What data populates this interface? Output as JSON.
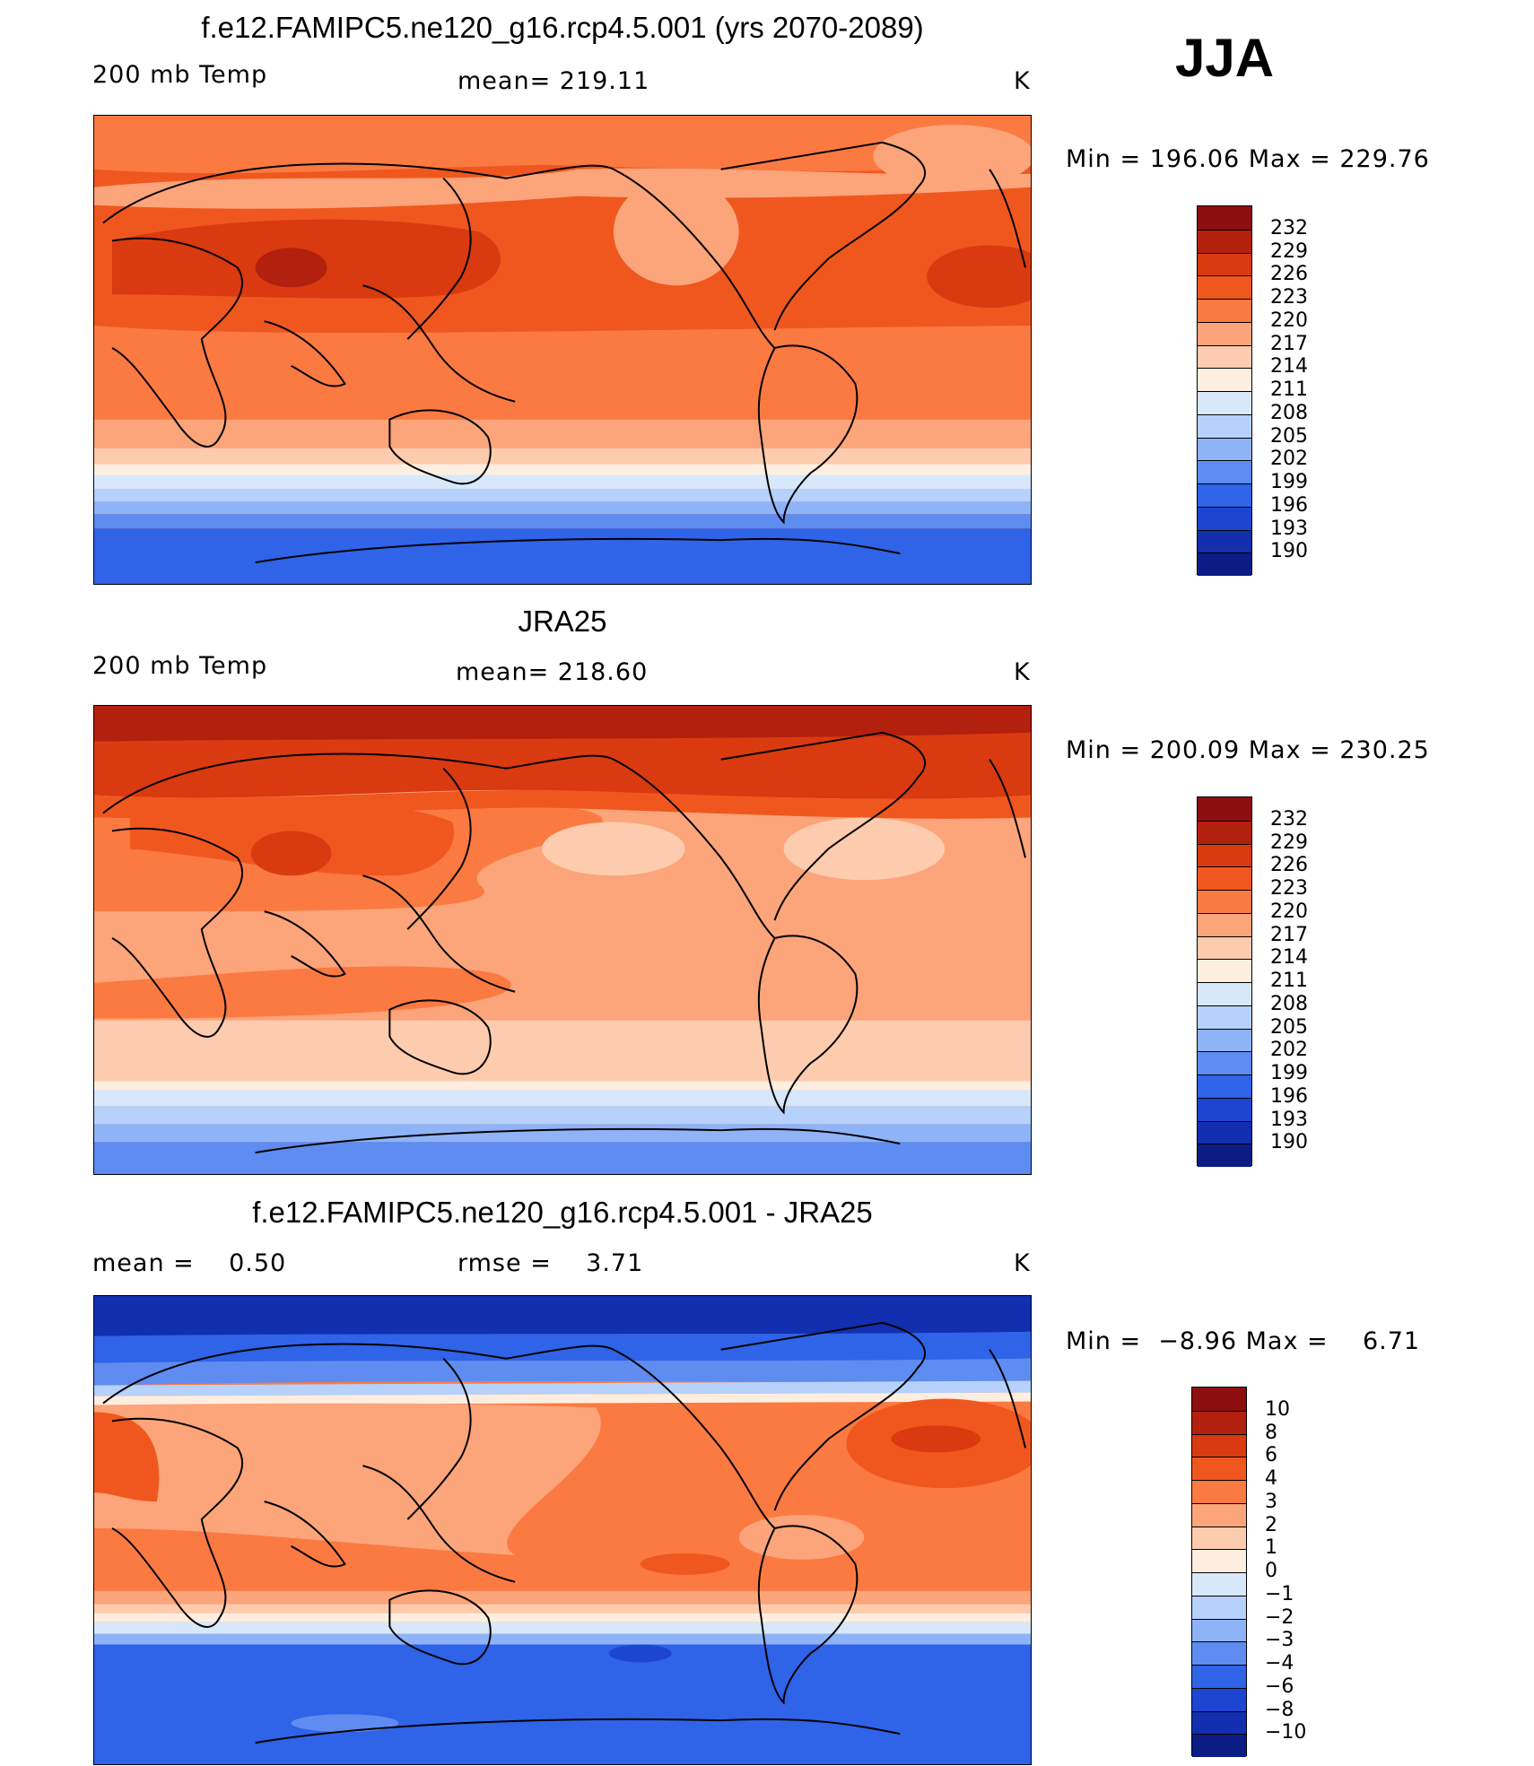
{
  "season": "JJA",
  "panels": [
    {
      "title": "f.e12.FAMIPC5.ne120_g16.rcp4.5.001 (yrs 2070-2089)",
      "left": "200 mb Temp",
      "center": "mean= 219.11",
      "units": "K",
      "minmax": "Min = 196.06 Max = 229.76",
      "levels": [
        "232",
        "229",
        "226",
        "223",
        "220",
        "217",
        "214",
        "211",
        "208",
        "205",
        "202",
        "199",
        "196",
        "193",
        "190"
      ],
      "colors": [
        "#8e0f0f",
        "#b4200e",
        "#d93a10",
        "#f0571f",
        "#fb7a42",
        "#fca47a",
        "#fdcbae",
        "#feeedf",
        "#d7e8fb",
        "#b6d1fb",
        "#8fb3f7",
        "#5e8cf0",
        "#2f63e8",
        "#1c45d2",
        "#122fb0",
        "#0b1c85"
      ]
    },
    {
      "title": "JRA25",
      "left": "200 mb Temp",
      "center": "mean= 218.60",
      "units": "K",
      "minmax": "Min = 200.09 Max = 230.25",
      "levels": [
        "232",
        "229",
        "226",
        "223",
        "220",
        "217",
        "214",
        "211",
        "208",
        "205",
        "202",
        "199",
        "196",
        "193",
        "190"
      ],
      "colors": [
        "#8e0f0f",
        "#b4200e",
        "#d93a10",
        "#f0571f",
        "#fb7a42",
        "#fca47a",
        "#fdcbae",
        "#feeedf",
        "#d7e8fb",
        "#b6d1fb",
        "#8fb3f7",
        "#5e8cf0",
        "#2f63e8",
        "#1c45d2",
        "#122fb0",
        "#0b1c85"
      ]
    },
    {
      "title": "f.e12.FAMIPC5.ne120_g16.rcp4.5.001 - JRA25",
      "left": "mean =    0.50",
      "center": "rmse =    3.71",
      "units": "K",
      "minmax": "Min =  −8.96 Max =    6.71",
      "levels": [
        "10",
        "8",
        "6",
        "4",
        "3",
        "2",
        "1",
        "0",
        "−1",
        "−2",
        "−3",
        "−4",
        "−6",
        "−8",
        "−10"
      ],
      "colors": [
        "#8e0f0f",
        "#b4200e",
        "#d93a10",
        "#f0571f",
        "#fb7a42",
        "#fca47a",
        "#fdcbae",
        "#feeedf",
        "#d7e8fb",
        "#b6d1fb",
        "#8fb3f7",
        "#5e8cf0",
        "#2f63e8",
        "#1c45d2",
        "#122fb0",
        "#0b1c85"
      ]
    }
  ]
}
